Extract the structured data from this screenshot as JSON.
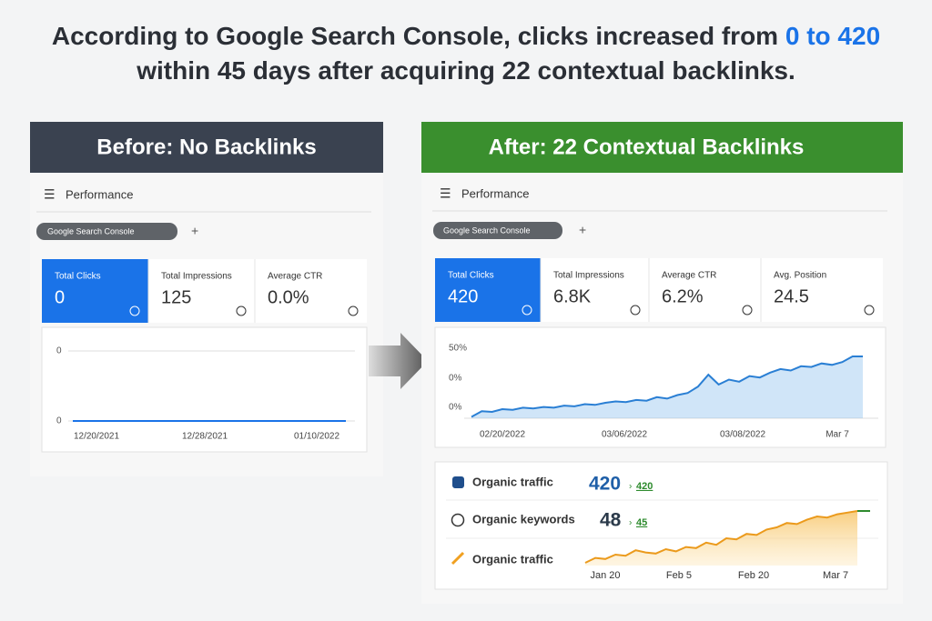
{
  "headline": {
    "line1": "According to Google Search Console, clicks increased from",
    "highlight": "0 to 420",
    "line2": "within 45 days after acquiring 22 contextual backlinks."
  },
  "before": {
    "banner": "Before: No Backlinks",
    "menu": "Performance",
    "chip": "Google Search Console",
    "add": "+",
    "metrics": [
      {
        "label": "Total Clicks",
        "value": "0"
      },
      {
        "label": "Total Impressions",
        "value": "125"
      },
      {
        "label": "Average CTR",
        "value": "0.0%"
      }
    ],
    "chart": {
      "ylabels": [
        "0",
        "0"
      ],
      "xlabels": [
        "12/20/2021",
        "12/28/2021",
        "01/10/2022"
      ],
      "values": [
        0,
        0,
        0,
        0,
        0,
        0,
        0,
        0,
        0,
        0
      ]
    }
  },
  "after": {
    "banner": "After: 22 Contextual Backlinks",
    "menu": "Performance",
    "chip": "Google Search Console",
    "add": "+",
    "metrics": [
      {
        "label": "Total Clicks",
        "value": "420"
      },
      {
        "label": "Total Impressions",
        "value": "6.8K"
      },
      {
        "label": "Average CTR",
        "value": "6.2%"
      },
      {
        "label": "Avg. Position",
        "value": "24.5"
      }
    ],
    "chart": {
      "ylabels": [
        "50%",
        "0%",
        "0%"
      ],
      "xlabels": [
        "02/20/2022",
        "03/06/2022",
        "03/08/2022",
        "Mar 7"
      ],
      "values": [
        2,
        10,
        9,
        13,
        12,
        15,
        14,
        16,
        15,
        18,
        17,
        20,
        19,
        22,
        24,
        23,
        26,
        25,
        30,
        28,
        33,
        36,
        45,
        62,
        48,
        55,
        52,
        60,
        58,
        65,
        70,
        68,
        74,
        73,
        78,
        76,
        80,
        88,
        88
      ]
    },
    "organic": {
      "rows": [
        {
          "label": "Organic traffic",
          "value": "420",
          "badge": "420"
        },
        {
          "label": "Organic keywords",
          "value": "48",
          "badge": "45"
        },
        {
          "label": "Organic traffic"
        }
      ],
      "xlabels": [
        "Jan 20",
        "Feb 5",
        "Feb 20",
        "Mar 7"
      ],
      "values": [
        5,
        14,
        12,
        20,
        18,
        28,
        24,
        22,
        30,
        26,
        34,
        32,
        42,
        38,
        50,
        48,
        58,
        56,
        66,
        70,
        78,
        76,
        84,
        90,
        88,
        94,
        97,
        100
      ]
    }
  }
}
